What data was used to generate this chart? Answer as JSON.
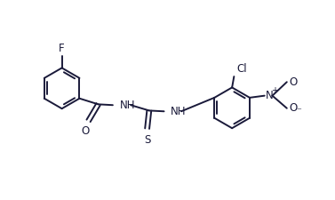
{
  "bg_color": "#ffffff",
  "line_color": "#1a1a3a",
  "line_width": 1.4,
  "font_size": 8.5,
  "xlim": [
    -0.5,
    8.0
  ],
  "ylim": [
    -0.8,
    3.2
  ]
}
